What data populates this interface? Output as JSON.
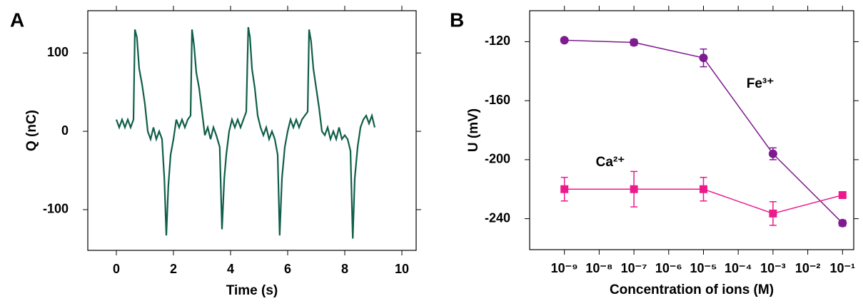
{
  "chart_data": [
    {
      "type": "line",
      "panel": "A",
      "xlabel": "Time (s)",
      "ylabel": "Q (nC)",
      "xlim": [
        -1,
        10.5
      ],
      "ylim": [
        -152,
        154
      ],
      "xticks": [
        0,
        2,
        4,
        6,
        8,
        10
      ],
      "yticks": [
        -100,
        0,
        100
      ],
      "series": [
        {
          "name": null,
          "color": "#0f5e48",
          "x": [
            0,
            0.1,
            0.2,
            0.3,
            0.4,
            0.5,
            0.6,
            0.65,
            0.72,
            0.8,
            0.9,
            1.0,
            1.1,
            1.2,
            1.3,
            1.4,
            1.5,
            1.6,
            1.68,
            1.75,
            1.82,
            1.9,
            2.0,
            2.1,
            2.2,
            2.3,
            2.4,
            2.5,
            2.6,
            2.65,
            2.72,
            2.8,
            2.9,
            3.0,
            3.1,
            3.2,
            3.3,
            3.4,
            3.5,
            3.62,
            3.7,
            3.78,
            3.85,
            3.95,
            4.05,
            4.15,
            4.25,
            4.35,
            4.45,
            4.55,
            4.62,
            4.68,
            4.75,
            4.85,
            4.95,
            5.05,
            5.15,
            5.25,
            5.35,
            5.45,
            5.55,
            5.65,
            5.72,
            5.8,
            5.9,
            6.0,
            6.1,
            6.2,
            6.3,
            6.4,
            6.5,
            6.6,
            6.7,
            6.75,
            6.82,
            6.9,
            7.0,
            7.1,
            7.2,
            7.3,
            7.4,
            7.5,
            7.6,
            7.7,
            7.8,
            7.9,
            8.0,
            8.1,
            8.2,
            8.28,
            8.35,
            8.45,
            8.55,
            8.65,
            8.75,
            8.85,
            8.95,
            9.05
          ],
          "values": [
            15,
            5,
            15,
            5,
            15,
            5,
            15,
            130,
            120,
            80,
            60,
            35,
            0,
            -10,
            5,
            -10,
            0,
            -10,
            -60,
            -133,
            -70,
            -30,
            -10,
            15,
            5,
            15,
            5,
            15,
            20,
            130,
            110,
            75,
            55,
            25,
            -5,
            5,
            -10,
            5,
            -5,
            -20,
            -125,
            -60,
            -30,
            0,
            15,
            5,
            15,
            5,
            15,
            25,
            133,
            120,
            80,
            55,
            20,
            5,
            -5,
            5,
            -10,
            0,
            -10,
            -30,
            -133,
            -60,
            -20,
            0,
            15,
            5,
            15,
            5,
            15,
            20,
            25,
            130,
            115,
            80,
            55,
            30,
            0,
            -5,
            5,
            -10,
            0,
            -10,
            5,
            -10,
            -5,
            -10,
            -25,
            -137,
            -60,
            -20,
            5,
            15,
            20,
            10,
            20,
            5
          ]
        }
      ]
    },
    {
      "type": "line",
      "panel": "B",
      "xlabel": "Concentration of ions (M)",
      "ylabel": "U (mV)",
      "xscale": "log",
      "xlim": [
        1e-10,
        0.21
      ],
      "ylim": [
        -261,
        -99
      ],
      "xticks": [
        {
          "value": 1e-09,
          "label": "10⁻⁹"
        },
        {
          "value": 1e-08,
          "label": "10⁻⁸"
        },
        {
          "value": 1e-07,
          "label": "10⁻⁷"
        },
        {
          "value": 1e-06,
          "label": "10⁻⁶"
        },
        {
          "value": 1e-05,
          "label": "10⁻⁵"
        },
        {
          "value": 0.0001,
          "label": "10⁻⁴"
        },
        {
          "value": 0.001,
          "label": "10⁻³"
        },
        {
          "value": 0.01,
          "label": "10⁻²"
        },
        {
          "value": 0.1,
          "label": "10⁻¹"
        }
      ],
      "yticks": [
        -240,
        -200,
        -160,
        -120
      ],
      "series": [
        {
          "name": "Fe³⁺",
          "color": "#7d1b8f",
          "marker": "circle",
          "x": [
            1e-09,
            1e-07,
            1e-05,
            0.001,
            0.1
          ],
          "values": [
            -119,
            -120.5,
            -131,
            -196,
            -243
          ],
          "errors": [
            1,
            2,
            6,
            4,
            2
          ]
        },
        {
          "name": "Ca²⁺",
          "color": "#ec1a8d",
          "marker": "square",
          "x": [
            1e-09,
            1e-07,
            1e-05,
            0.001,
            0.1
          ],
          "values": [
            -220,
            -220,
            -220,
            -236.5,
            -224
          ],
          "errors": [
            8,
            12,
            8,
            8,
            1
          ]
        }
      ]
    }
  ]
}
